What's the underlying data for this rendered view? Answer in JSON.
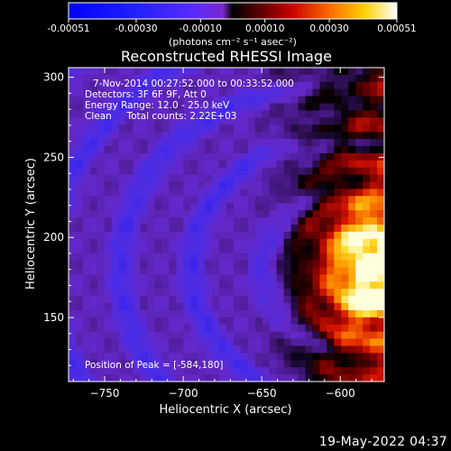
{
  "chart_data": {
    "type": "heatmap",
    "title": "Reconstructed RHESSI Image",
    "xlabel": "Heliocentric X (arcsec)",
    "ylabel": "Heliocentric Y (arcsec)",
    "xlim": [
      -773,
      -572
    ],
    "ylim": [
      110,
      306
    ],
    "xticks": [
      -750,
      -700,
      -650,
      -600
    ],
    "yticks": [
      150,
      200,
      250,
      300
    ],
    "colorbar": {
      "vmin": -0.00051,
      "vmax": 0.00051,
      "ticks": [
        "-0.00051",
        "-0.00030",
        "-0.00010",
        "0.00010",
        "0.00030",
        "0.00051"
      ],
      "tick_values": [
        -0.00051,
        -0.0003,
        -0.0001,
        0.0001,
        0.0003,
        0.00051
      ],
      "unit_label": "(photons cm⁻² s⁻¹ asec⁻²)"
    },
    "annotations": {
      "time": "7-Nov-2014 00:27:52.000 to 00:33:52.000",
      "detectors": "Detectors: 3F 6F 9F, Att 0",
      "energy": "Energy Range: 12.0 - 25.0 keV",
      "clean": "Clean     Total counts: 2.22E+03",
      "peak": "Position of Peak = [-584,180]"
    },
    "peak": {
      "x": -584,
      "y": 180
    },
    "grid": false
  },
  "footer": {
    "timestamp": "19-May-2022 04:37"
  },
  "colors": {
    "background": "#000000",
    "text": "#ffffff"
  }
}
